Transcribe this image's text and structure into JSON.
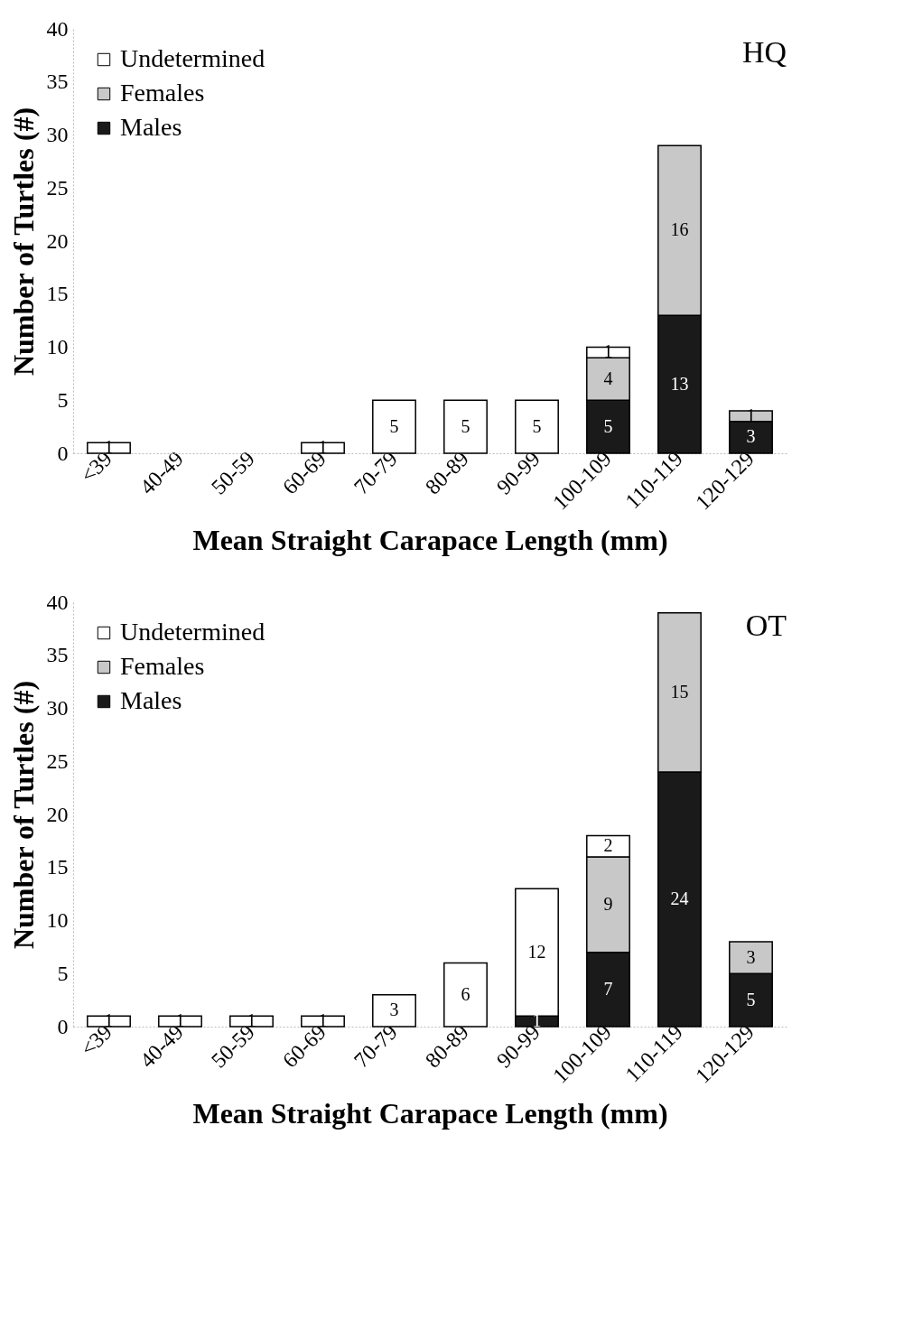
{
  "chart_data": [
    {
      "type": "bar",
      "title": "HQ",
      "xlabel": "Mean Straight Carapace Length (mm)",
      "ylabel": "Number of Turtles (#)",
      "categories": [
        "<39",
        "40-49",
        "50-59",
        "60-69",
        "70-79",
        "80-89",
        "90-99",
        "100-109",
        "110-119",
        "120-129"
      ],
      "stacked": true,
      "data_labels": true,
      "legend": "top left",
      "ylim": [
        0,
        40
      ],
      "yticks": [
        0,
        5,
        10,
        15,
        20,
        25,
        30,
        35,
        40
      ],
      "series": [
        {
          "name": "Males",
          "color": "#1a1a1a",
          "values": [
            null,
            null,
            null,
            null,
            null,
            null,
            null,
            5,
            13,
            3
          ]
        },
        {
          "name": "Females",
          "color": "#c8c8c8",
          "values": [
            null,
            null,
            null,
            null,
            null,
            null,
            null,
            4,
            16,
            1
          ]
        },
        {
          "name": "Undetermined",
          "color": "#ffffff",
          "values": [
            1,
            null,
            null,
            1,
            5,
            5,
            5,
            1,
            null,
            null
          ]
        }
      ]
    },
    {
      "type": "bar",
      "title": "OT",
      "xlabel": "Mean Straight Carapace Length (mm)",
      "ylabel": "Number of Turtles (#)",
      "categories": [
        "<39",
        "40-49",
        "50-59",
        "60-69",
        "70-79",
        "80-89",
        "90-99",
        "100-109",
        "110-119",
        "120-129"
      ],
      "stacked": true,
      "data_labels": true,
      "legend": "top left",
      "ylim": [
        0,
        40
      ],
      "yticks": [
        0,
        5,
        10,
        15,
        20,
        25,
        30,
        35,
        40
      ],
      "series": [
        {
          "name": "Males",
          "color": "#1a1a1a",
          "values": [
            null,
            null,
            null,
            null,
            null,
            null,
            1,
            7,
            24,
            5
          ]
        },
        {
          "name": "Females",
          "color": "#c8c8c8",
          "values": [
            null,
            null,
            null,
            null,
            null,
            null,
            null,
            9,
            15,
            3
          ]
        },
        {
          "name": "Undetermined",
          "color": "#ffffff",
          "values": [
            1,
            1,
            1,
            1,
            3,
            6,
            12,
            2,
            null,
            null
          ]
        }
      ]
    }
  ]
}
